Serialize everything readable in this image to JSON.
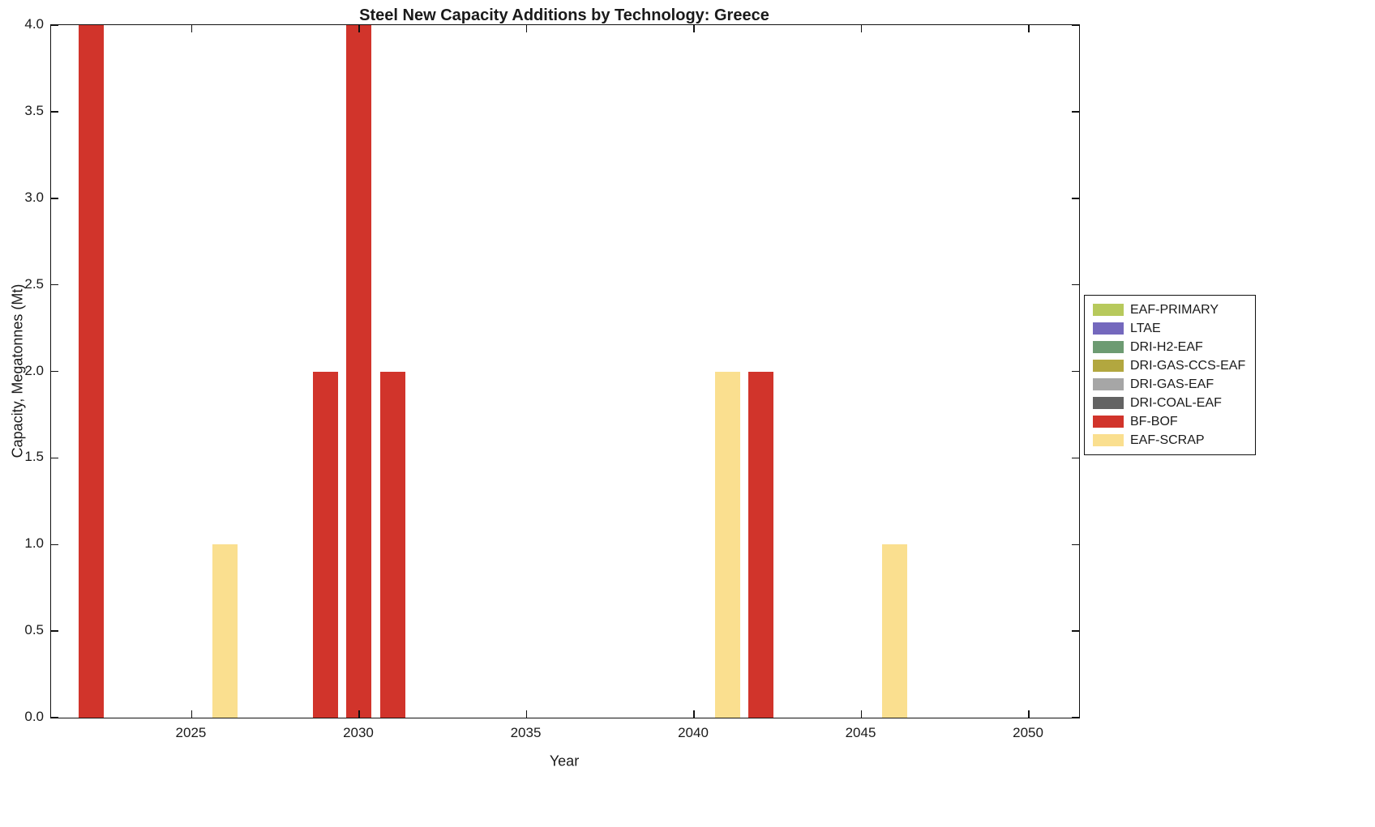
{
  "chart_data": {
    "type": "bar",
    "title": "Steel New Capacity Additions by Technology: Greece",
    "xlabel": "Year",
    "ylabel": "Capacity, Megatonnes (Mt)",
    "xlim": [
      2020.8,
      2051.5
    ],
    "ylim": [
      0,
      4
    ],
    "grid": false,
    "legend_position": "right-outside",
    "bar_width_years": 0.75,
    "xticks": [
      {
        "value": 2025,
        "label": "2025"
      },
      {
        "value": 2030,
        "label": "2030"
      },
      {
        "value": 2035,
        "label": "2035"
      },
      {
        "value": 2040,
        "label": "2040"
      },
      {
        "value": 2045,
        "label": "2045"
      },
      {
        "value": 2050,
        "label": "2050"
      }
    ],
    "yticks": [
      {
        "value": 0,
        "label": "0.0"
      },
      {
        "value": 0.5,
        "label": "0.5"
      },
      {
        "value": 1,
        "label": "1.0"
      },
      {
        "value": 1.5,
        "label": "1.5"
      },
      {
        "value": 2,
        "label": "2.0"
      },
      {
        "value": 2.5,
        "label": "2.5"
      },
      {
        "value": 3,
        "label": "3.0"
      },
      {
        "value": 3.5,
        "label": "3.5"
      },
      {
        "value": 4,
        "label": "4.0"
      }
    ],
    "legend": [
      {
        "name": "EAF-PRIMARY",
        "color": "#b7c95c"
      },
      {
        "name": "LTAE",
        "color": "#7468bd"
      },
      {
        "name": "DRI-H2-EAF",
        "color": "#6d9b72"
      },
      {
        "name": "DRI-GAS-CCS-EAF",
        "color": "#b2a73f"
      },
      {
        "name": "DRI-GAS-EAF",
        "color": "#a6a6a6"
      },
      {
        "name": "DRI-COAL-EAF",
        "color": "#636363"
      },
      {
        "name": "BF-BOF",
        "color": "#d1342b"
      },
      {
        "name": "EAF-SCRAP",
        "color": "#fadf8f"
      }
    ],
    "series": [
      {
        "name": "BF-BOF",
        "color": "#d1342b",
        "points": [
          {
            "x": 2022,
            "y": 4
          },
          {
            "x": 2029,
            "y": 2
          },
          {
            "x": 2030,
            "y": 4
          },
          {
            "x": 2031,
            "y": 2
          },
          {
            "x": 2042,
            "y": 2
          }
        ]
      },
      {
        "name": "EAF-SCRAP",
        "color": "#fadf8f",
        "points": [
          {
            "x": 2026,
            "y": 1
          },
          {
            "x": 2041,
            "y": 2
          },
          {
            "x": 2046,
            "y": 1
          }
        ]
      }
    ]
  }
}
